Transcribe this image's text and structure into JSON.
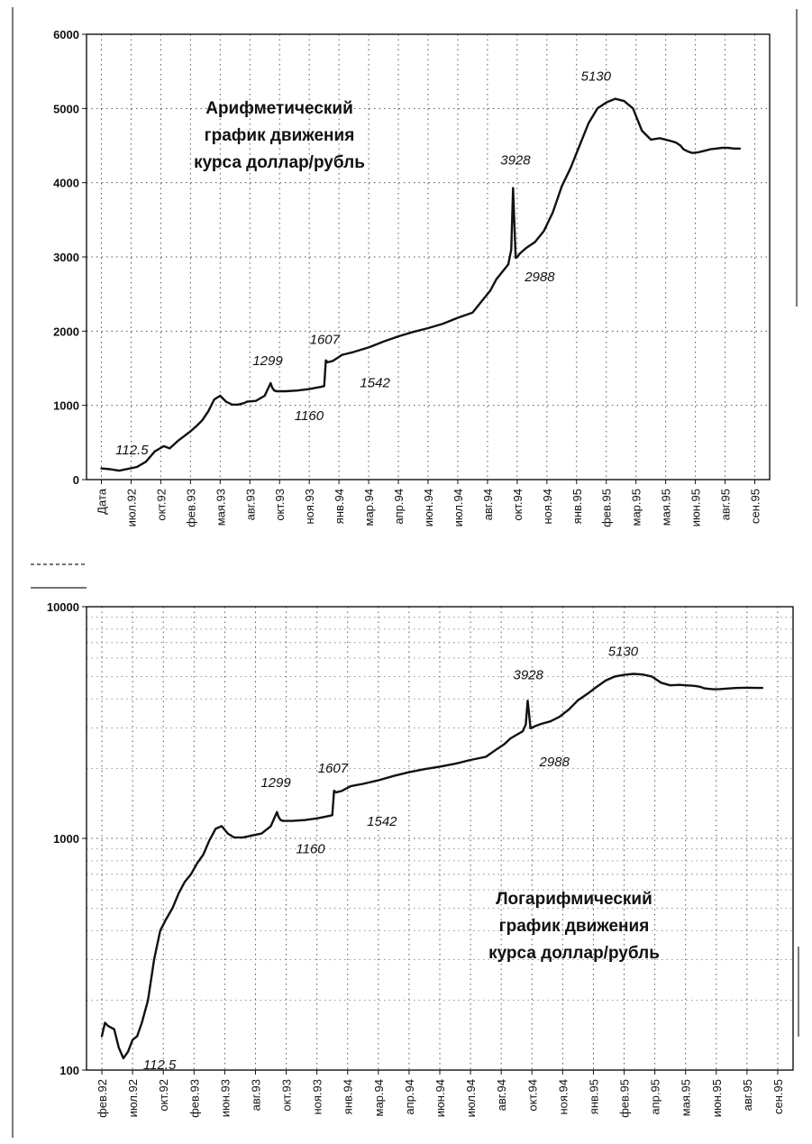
{
  "chart_data": [
    {
      "type": "line",
      "scale": "linear",
      "title": [
        "Арифметический",
        "график движения",
        "курса доллар/рубль"
      ],
      "xlabel": "",
      "ylabel": "",
      "ylim": [
        0,
        6000
      ],
      "yticks": [
        0,
        1000,
        2000,
        3000,
        4000,
        5000,
        6000
      ],
      "categories": [
        "Дата",
        "июл.92",
        "окт.92",
        "фев.93",
        "мая.93",
        "авг.93",
        "окт.93",
        "ноя.93",
        "янв.94",
        "мар.94",
        "апр.94",
        "июн.94",
        "июл.94",
        "авг.94",
        "окт.94",
        "ноя.94",
        "янв.95",
        "фев.95",
        "мар.95",
        "мая.95",
        "июн.95",
        "авг.95",
        "сен.95"
      ],
      "grid": true,
      "series": [
        {
          "x": [
            0,
            0.3,
            0.6,
            0.9,
            1.2,
            1.5,
            1.8,
            2.1,
            2.3,
            2.6,
            2.8,
            3.0,
            3.2,
            3.4,
            3.6,
            3.8,
            4.0,
            4.2,
            4.4,
            4.6,
            4.8,
            4.9,
            5.2,
            5.5,
            5.7,
            5.75,
            5.82,
            5.9,
            6.2,
            6.6,
            7.0,
            7.4,
            7.5,
            7.56,
            7.62,
            7.8,
            8.1,
            8.5,
            9.0,
            9.5,
            10.0,
            10.5,
            11.0,
            11.5,
            12.0,
            12.5,
            12.8,
            13.1,
            13.3,
            13.5,
            13.7,
            13.8,
            13.86,
            13.9,
            13.95,
            14.0,
            14.1,
            14.3,
            14.6,
            14.9,
            15.2,
            15.5,
            15.8,
            16.1,
            16.4,
            16.7,
            17.0,
            17.3,
            17.6,
            17.9,
            18.2,
            18.5,
            18.8,
            19.0,
            19.2,
            19.35,
            19.5,
            19.6,
            19.75,
            19.9,
            20.1,
            20.3,
            20.5,
            20.7,
            20.9,
            21.1,
            21.3,
            21.5
          ],
          "values": [
            150,
            140,
            120,
            145,
            170,
            240,
            380,
            450,
            420,
            530,
            590,
            650,
            720,
            800,
            920,
            1080,
            1130,
            1050,
            1010,
            1010,
            1030,
            1050,
            1060,
            1130,
            1299,
            1240,
            1200,
            1190,
            1190,
            1200,
            1220,
            1250,
            1260,
            1607,
            1580,
            1600,
            1680,
            1720,
            1780,
            1860,
            1930,
            1990,
            2040,
            2100,
            2180,
            2250,
            2400,
            2550,
            2700,
            2800,
            2900,
            3100,
            3928,
            3500,
            2988,
            3000,
            3050,
            3120,
            3200,
            3350,
            3600,
            3950,
            4200,
            4500,
            4800,
            5000,
            5080,
            5130,
            5100,
            5000,
            4700,
            4580,
            4600,
            4580,
            4560,
            4540,
            4500,
            4450,
            4420,
            4400,
            4410,
            4430,
            4450,
            4460,
            4470,
            4470,
            4460,
            4460
          ]
        }
      ],
      "annotations": [
        "112.5",
        "1299",
        "1160",
        "1607",
        "1542",
        "3928",
        "2988",
        "5130"
      ]
    },
    {
      "type": "line",
      "scale": "log",
      "title": [
        "Логарифмический",
        "график движения",
        "курса доллар/рубль"
      ],
      "xlabel": "",
      "ylabel": "",
      "ylim": [
        100,
        10000
      ],
      "yticks": [
        100,
        1000,
        10000
      ],
      "categories": [
        "фев.92",
        "июл.92",
        "окт.92",
        "фев.93",
        "июн.93",
        "авг.93",
        "окт.93",
        "ноя.93",
        "янв.94",
        "мар.94",
        "апр.94",
        "июн.94",
        "июл.94",
        "авг.94",
        "окт.94",
        "ноя.94",
        "янв.95",
        "фев.95",
        "апр.95",
        "мая.95",
        "июн.95",
        "авг.95",
        "сен.95"
      ],
      "grid": true,
      "series": [
        {
          "x": [
            0,
            0.1,
            0.2,
            0.4,
            0.55,
            0.7,
            0.85,
            1.0,
            1.15,
            1.3,
            1.5,
            1.7,
            1.9,
            2.1,
            2.3,
            2.5,
            2.7,
            2.9,
            3.1,
            3.3,
            3.5,
            3.7,
            3.9,
            4.1,
            4.3,
            4.6,
            4.9,
            5.2,
            5.5,
            5.7,
            5.75,
            5.82,
            5.9,
            6.2,
            6.6,
            7.0,
            7.4,
            7.5,
            7.56,
            7.62,
            7.8,
            8.1,
            8.5,
            9.0,
            9.5,
            10.0,
            10.5,
            11.0,
            11.5,
            12.0,
            12.5,
            12.8,
            13.1,
            13.3,
            13.5,
            13.7,
            13.8,
            13.86,
            13.9,
            13.95,
            14.0,
            14.1,
            14.3,
            14.6,
            14.9,
            15.2,
            15.5,
            15.8,
            16.1,
            16.4,
            16.7,
            17.0,
            17.3,
            17.6,
            17.9,
            18.2,
            18.5,
            18.8,
            19.0,
            19.2,
            19.35,
            19.5,
            19.6,
            19.75,
            19.9,
            20.1,
            20.3,
            20.5,
            20.7,
            20.9,
            21.1,
            21.3,
            21.5
          ],
          "values": [
            140,
            160,
            155,
            150,
            125,
            112.5,
            120,
            135,
            140,
            160,
            200,
            300,
            400,
            450,
            500,
            580,
            650,
            700,
            780,
            850,
            980,
            1100,
            1130,
            1050,
            1010,
            1010,
            1030,
            1050,
            1130,
            1299,
            1240,
            1200,
            1190,
            1190,
            1200,
            1220,
            1250,
            1260,
            1607,
            1580,
            1600,
            1680,
            1720,
            1780,
            1860,
            1930,
            1990,
            2040,
            2100,
            2180,
            2250,
            2400,
            2550,
            2700,
            2800,
            2900,
            3100,
            3928,
            3500,
            2988,
            3000,
            3050,
            3120,
            3200,
            3350,
            3600,
            3950,
            4200,
            4500,
            4800,
            5000,
            5080,
            5130,
            5100,
            5000,
            4700,
            4580,
            4600,
            4580,
            4560,
            4540,
            4500,
            4450,
            4420,
            4400,
            4410,
            4430,
            4450,
            4460,
            4470,
            4470,
            4460,
            4460
          ]
        }
      ],
      "annotations": [
        "112.5",
        "1299",
        "1160",
        "1607",
        "1542",
        "3928",
        "2988",
        "5130"
      ]
    }
  ]
}
